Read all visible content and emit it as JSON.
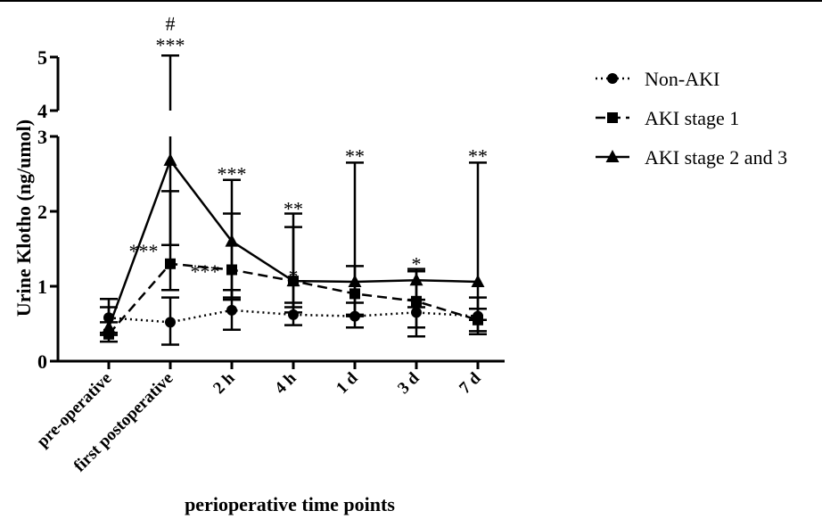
{
  "chart_data": {
    "type": "line",
    "title": "",
    "xlabel": "perioperative time points",
    "ylabel": "Urine Klotho (ng/umol)",
    "categories": [
      "pre-operative",
      "first postoperative",
      "2 h",
      "4 h",
      "1 d",
      "3 d",
      "7 d"
    ],
    "ylim_lower": [
      0,
      3
    ],
    "ylim_upper": [
      4,
      5
    ],
    "y_ticks_lower": [
      "0",
      "1",
      "2",
      "3"
    ],
    "y_ticks_upper": [
      "4",
      "5"
    ],
    "grid": false,
    "legend_position": "right",
    "series": [
      {
        "name": "Non-AKI",
        "marker": "circle",
        "line_style": "dotted",
        "values": [
          0.58,
          0.52,
          0.68,
          0.62,
          0.6,
          0.65,
          0.6
        ],
        "err_low": [
          0.38,
          0.22,
          0.42,
          0.48,
          0.45,
          0.45,
          0.36
        ],
        "err_high": [
          0.72,
          0.85,
          0.95,
          0.78,
          0.78,
          0.82,
          0.7
        ]
      },
      {
        "name": "AKI stage 1",
        "marker": "square",
        "line_style": "dashed",
        "values": [
          0.36,
          1.3,
          1.22,
          1.07,
          0.9,
          0.8,
          0.55
        ],
        "err_low": [
          0.26,
          0.95,
          0.82,
          0.65,
          0.6,
          0.33,
          0.4
        ],
        "err_high": [
          0.52,
          2.27,
          1.97,
          1.79,
          1.27,
          1.2,
          0.85
        ]
      },
      {
        "name": "AKI stage 2 and 3",
        "marker": "triangle",
        "line_style": "solid",
        "values": [
          0.45,
          2.68,
          1.6,
          1.07,
          1.06,
          1.08,
          1.06
        ],
        "err_low": [
          0.35,
          1.55,
          0.85,
          0.72,
          0.62,
          0.72,
          0.55
        ],
        "err_high": [
          0.83,
          5.03,
          2.42,
          1.97,
          2.65,
          1.23,
          2.65
        ]
      }
    ],
    "annotations": [
      {
        "category": "first postoperative",
        "y": 5.2,
        "text": "***"
      },
      {
        "category": "first postoperative",
        "y": 5.6,
        "text": "#"
      },
      {
        "category": "first postoperative",
        "y": 1.45,
        "text": "***",
        "offset": "left"
      },
      {
        "category": "2 h",
        "y": 2.48,
        "text": "***"
      },
      {
        "category": "2 h",
        "y": 1.18,
        "text": "***",
        "offset": "left"
      },
      {
        "category": "4 h",
        "y": 2.02,
        "text": "**"
      },
      {
        "category": "4 h",
        "y": 1.12,
        "text": "*"
      },
      {
        "category": "1 d",
        "y": 2.72,
        "text": "**"
      },
      {
        "category": "3 d",
        "y": 1.28,
        "text": "*"
      },
      {
        "category": "7 d",
        "y": 2.72,
        "text": "**"
      }
    ]
  }
}
